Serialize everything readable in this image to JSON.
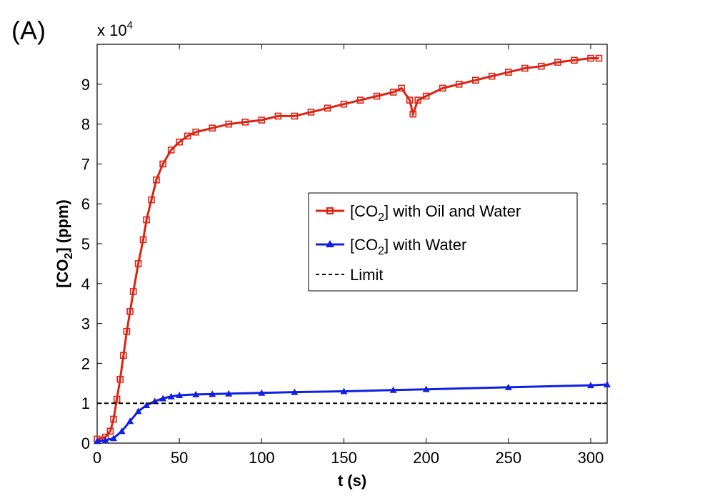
{
  "figure": {
    "panel_label": "(A)",
    "exponent_label_base": "x 10",
    "exponent_label_power": "4"
  },
  "chart_data": {
    "type": "line",
    "title": "",
    "xlabel": "t (s)",
    "ylabel_parts": {
      "pre": "[CO",
      "sub": "2",
      "post": "] (ppm)"
    },
    "xlim": [
      0,
      310
    ],
    "ylim": [
      0,
      10
    ],
    "y_multiplier": 10000,
    "x_ticks": [
      0,
      50,
      100,
      150,
      200,
      250,
      300
    ],
    "y_ticks": [
      0,
      1,
      2,
      3,
      4,
      5,
      6,
      7,
      8,
      9
    ],
    "grid": false,
    "legend_position": "center-right",
    "series": [
      {
        "name_parts": {
          "pre": "[CO",
          "sub": "2",
          "post": "] with Oil and Water"
        },
        "color": "#dd2211",
        "marker": "square",
        "x": [
          0,
          5,
          8,
          10,
          12,
          14,
          16,
          18,
          20,
          22,
          25,
          28,
          30,
          33,
          36,
          40,
          45,
          50,
          55,
          60,
          70,
          80,
          90,
          100,
          110,
          120,
          130,
          140,
          150,
          160,
          170,
          180,
          185,
          190,
          192,
          195,
          200,
          210,
          220,
          230,
          240,
          250,
          260,
          270,
          280,
          290,
          300,
          305
        ],
        "y": [
          0.1,
          0.15,
          0.3,
          0.6,
          1.1,
          1.6,
          2.2,
          2.8,
          3.3,
          3.8,
          4.5,
          5.1,
          5.6,
          6.1,
          6.6,
          7.0,
          7.35,
          7.55,
          7.7,
          7.8,
          7.9,
          8.0,
          8.05,
          8.1,
          8.2,
          8.2,
          8.3,
          8.4,
          8.5,
          8.6,
          8.7,
          8.8,
          8.9,
          8.6,
          8.25,
          8.6,
          8.7,
          8.9,
          9.0,
          9.1,
          9.2,
          9.3,
          9.4,
          9.45,
          9.55,
          9.6,
          9.65,
          9.65
        ]
      },
      {
        "name_parts": {
          "pre": "[CO",
          "sub": "2",
          "post": "] with Water"
        },
        "color": "#1020e0",
        "marker": "triangle",
        "x": [
          0,
          5,
          10,
          15,
          20,
          25,
          30,
          35,
          40,
          45,
          50,
          60,
          70,
          80,
          100,
          120,
          150,
          180,
          200,
          250,
          300,
          310
        ],
        "y": [
          0.05,
          0.07,
          0.12,
          0.3,
          0.55,
          0.8,
          0.95,
          1.05,
          1.12,
          1.17,
          1.2,
          1.22,
          1.23,
          1.24,
          1.26,
          1.28,
          1.3,
          1.33,
          1.35,
          1.4,
          1.45,
          1.47
        ]
      },
      {
        "name": "Limit",
        "color": "#000000",
        "style": "dashed",
        "x": [
          0,
          310
        ],
        "y": [
          1,
          1
        ]
      }
    ]
  }
}
